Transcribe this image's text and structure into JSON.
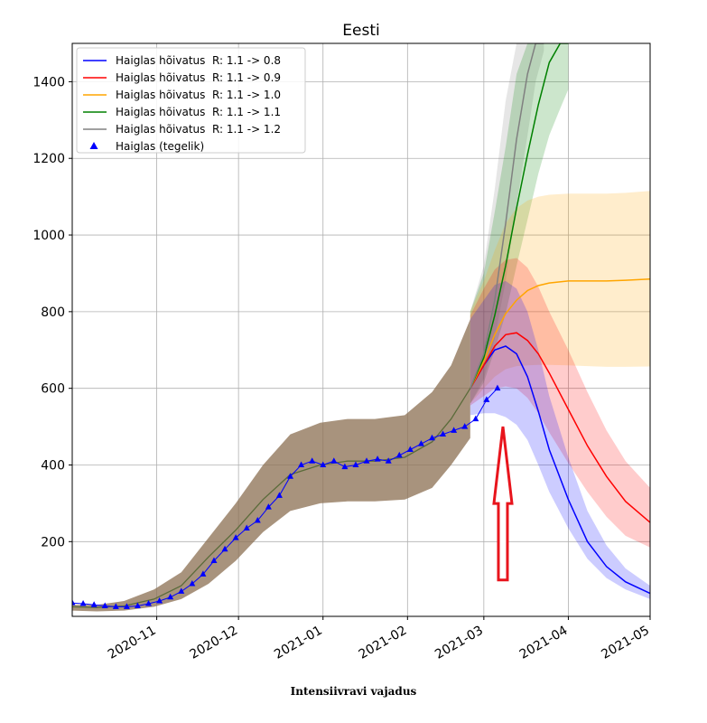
{
  "caption": "Intensiivravi vajadus",
  "colors": {
    "r08": "#0000ff",
    "r09": "#ff0000",
    "r10": "#ffa500",
    "r11": "#008000",
    "r12": "#808080",
    "actual": "#0000ff",
    "arrow": "#e8141c"
  },
  "chart_data": {
    "type": "line",
    "title": "Eesti",
    "xlabel": "",
    "ylabel": "",
    "x_range": [
      "2020-10-01",
      "2021-05-01"
    ],
    "ylim": [
      5,
      1500
    ],
    "grid": true,
    "legend_position": "top-left",
    "x_ticks": [
      "2020-11",
      "2020-12",
      "2021-01",
      "2021-02",
      "2021-03",
      "2021-04",
      "2021-05"
    ],
    "y_ticks": [
      200,
      400,
      600,
      800,
      1000,
      1200,
      1400
    ],
    "annotations": [
      {
        "type": "arrow",
        "from": [
          "2021-03-08",
          100
        ],
        "to": [
          "2021-03-08",
          500
        ],
        "direction": "up"
      }
    ],
    "series": [
      {
        "name": "Haiglas hõivatus  R: 1.1 -> 0.8",
        "color_key": "r08",
        "x": [
          "2021-02-24",
          "2021-03-01",
          "2021-03-05",
          "2021-03-09",
          "2021-03-13",
          "2021-03-17",
          "2021-03-21",
          "2021-03-25",
          "2021-04-01",
          "2021-04-08",
          "2021-04-15",
          "2021-04-22",
          "2021-05-01"
        ],
        "values": [
          600,
          660,
          700,
          710,
          690,
          630,
          540,
          440,
          310,
          200,
          135,
          95,
          65
        ],
        "lower": [
          530,
          535,
          535,
          525,
          505,
          465,
          400,
          330,
          235,
          155,
          105,
          75,
          50
        ],
        "upper": [
          780,
          830,
          870,
          880,
          860,
          800,
          700,
          580,
          420,
          280,
          190,
          130,
          85
        ]
      },
      {
        "name": "Haiglas hõivatus  R: 1.1 -> 0.9",
        "color_key": "r09",
        "x": [
          "2021-02-24",
          "2021-03-01",
          "2021-03-05",
          "2021-03-09",
          "2021-03-13",
          "2021-03-17",
          "2021-03-21",
          "2021-03-25",
          "2021-04-01",
          "2021-04-08",
          "2021-04-15",
          "2021-04-22",
          "2021-05-01"
        ],
        "values": [
          600,
          660,
          710,
          740,
          745,
          725,
          690,
          640,
          545,
          450,
          370,
          305,
          250
        ],
        "lower": [
          555,
          580,
          600,
          605,
          600,
          575,
          535,
          485,
          405,
          330,
          265,
          215,
          185
        ],
        "upper": [
          790,
          860,
          910,
          935,
          940,
          915,
          865,
          800,
          700,
          590,
          490,
          410,
          340
        ]
      },
      {
        "name": "Haiglas hõivatus  R: 1.1 -> 1.0",
        "color_key": "r10",
        "x": [
          "2021-02-24",
          "2021-03-01",
          "2021-03-05",
          "2021-03-09",
          "2021-03-13",
          "2021-03-17",
          "2021-03-21",
          "2021-03-25",
          "2021-04-01",
          "2021-04-08",
          "2021-04-15",
          "2021-04-22",
          "2021-05-01"
        ],
        "values": [
          600,
          670,
          740,
          795,
          830,
          855,
          868,
          875,
          880,
          880,
          880,
          882,
          885
        ],
        "lower": [
          560,
          600,
          630,
          650,
          658,
          660,
          661,
          661,
          660,
          658,
          656,
          656,
          657
        ],
        "upper": [
          800,
          880,
          960,
          1030,
          1070,
          1090,
          1100,
          1105,
          1108,
          1108,
          1108,
          1110,
          1115
        ]
      },
      {
        "name": "Haiglas hõivatus  R: 1.1 -> 1.1",
        "color_key": "r11",
        "x": [
          "2021-02-24",
          "2021-03-01",
          "2021-03-05",
          "2021-03-09",
          "2021-03-13",
          "2021-03-17",
          "2021-03-21",
          "2021-03-25",
          "2021-03-29",
          "2021-04-01"
        ],
        "values": [
          600,
          680,
          790,
          920,
          1070,
          1210,
          1340,
          1450,
          1500,
          1500
        ],
        "lower": [
          560,
          615,
          700,
          795,
          920,
          1040,
          1160,
          1260,
          1330,
          1380
        ],
        "upper": [
          800,
          900,
          1060,
          1230,
          1420,
          1500,
          1500,
          1500,
          1500,
          1500
        ]
      },
      {
        "name": "Haiglas hõivatus  R: 1.1 -> 1.2",
        "color_key": "r12",
        "x": [
          "2021-02-24",
          "2021-03-01",
          "2021-03-05",
          "2021-03-09",
          "2021-03-13",
          "2021-03-17",
          "2021-03-20",
          "2021-03-23"
        ],
        "values": [
          600,
          690,
          830,
          1030,
          1250,
          1420,
          1500,
          1500
        ],
        "lower": [
          560,
          625,
          730,
          880,
          1080,
          1260,
          1400,
          1480
        ],
        "upper": [
          800,
          920,
          1120,
          1350,
          1500,
          1500,
          1500,
          1500
        ]
      },
      {
        "name": "Haiglas (tegelik)",
        "color_key": "actual",
        "marker": "triangle",
        "x": [
          "2020-10-01",
          "2020-10-05",
          "2020-10-09",
          "2020-10-13",
          "2020-10-17",
          "2020-10-21",
          "2020-10-25",
          "2020-10-29",
          "2020-11-02",
          "2020-11-06",
          "2020-11-10",
          "2020-11-14",
          "2020-11-18",
          "2020-11-22",
          "2020-11-26",
          "2020-11-30",
          "2020-12-04",
          "2020-12-08",
          "2020-12-12",
          "2020-12-16",
          "2020-12-20",
          "2020-12-24",
          "2020-12-28",
          "2021-01-01",
          "2021-01-05",
          "2021-01-09",
          "2021-01-13",
          "2021-01-17",
          "2021-01-21",
          "2021-01-25",
          "2021-01-29",
          "2021-02-02",
          "2021-02-06",
          "2021-02-10",
          "2021-02-14",
          "2021-02-18",
          "2021-02-22",
          "2021-02-26",
          "2021-03-02",
          "2021-03-06"
        ],
        "values": [
          40,
          38,
          35,
          32,
          30,
          30,
          32,
          38,
          45,
          55,
          70,
          90,
          115,
          150,
          180,
          210,
          235,
          255,
          290,
          320,
          370,
          400,
          410,
          400,
          410,
          395,
          400,
          410,
          415,
          410,
          425,
          440,
          455,
          470,
          480,
          490,
          500,
          520,
          570,
          600
        ]
      }
    ],
    "common_band": {
      "x": [
        "2020-10-01",
        "2020-10-10",
        "2020-10-20",
        "2020-10-31",
        "2020-11-10",
        "2020-11-20",
        "2020-11-30",
        "2020-12-10",
        "2020-12-20",
        "2020-12-31",
        "2021-01-10",
        "2021-01-20",
        "2021-01-31",
        "2021-02-10",
        "2021-02-17",
        "2021-02-24"
      ],
      "values": [
        30,
        28,
        32,
        50,
        85,
        160,
        230,
        310,
        375,
        400,
        410,
        410,
        420,
        460,
        520,
        600
      ],
      "lower": [
        20,
        18,
        20,
        30,
        50,
        90,
        150,
        225,
        280,
        300,
        305,
        305,
        310,
        340,
        400,
        470
      ],
      "upper": [
        35,
        35,
        45,
        75,
        120,
        210,
        300,
        400,
        480,
        510,
        520,
        520,
        530,
        590,
        660,
        780
      ]
    }
  }
}
